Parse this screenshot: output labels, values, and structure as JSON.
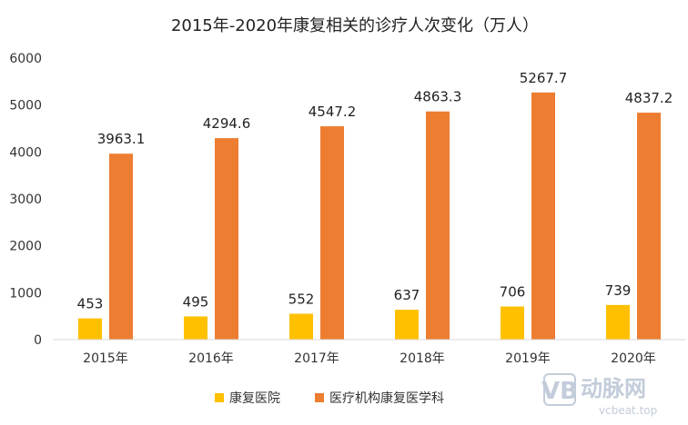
{
  "chart_data": {
    "type": "bar",
    "title": "2015年-2020年康复相关的诊疗人次变化（万人）",
    "categories": [
      "2015年",
      "2016年",
      "2017年",
      "2018年",
      "2019年",
      "2020年"
    ],
    "series": [
      {
        "name": "康复医院",
        "values": [
          453,
          495,
          552,
          637,
          706,
          739
        ],
        "color": "#FFC000"
      },
      {
        "name": "医疗机构康复医学科",
        "values": [
          3963.1,
          4294.6,
          4547.2,
          4863.3,
          5267.7,
          4837.2
        ],
        "color": "#ED7D31"
      }
    ],
    "y_ticks": [
      "0",
      "1000",
      "2000",
      "3000",
      "4000",
      "5000",
      "6000"
    ],
    "ylim": [
      0,
      6000
    ],
    "xlabel": "",
    "ylabel": "",
    "grid": false,
    "legend_position": "bottom"
  },
  "watermark": {
    "logo_mark": "VB",
    "brand": "动脉网",
    "url": "vcbeat.top"
  }
}
